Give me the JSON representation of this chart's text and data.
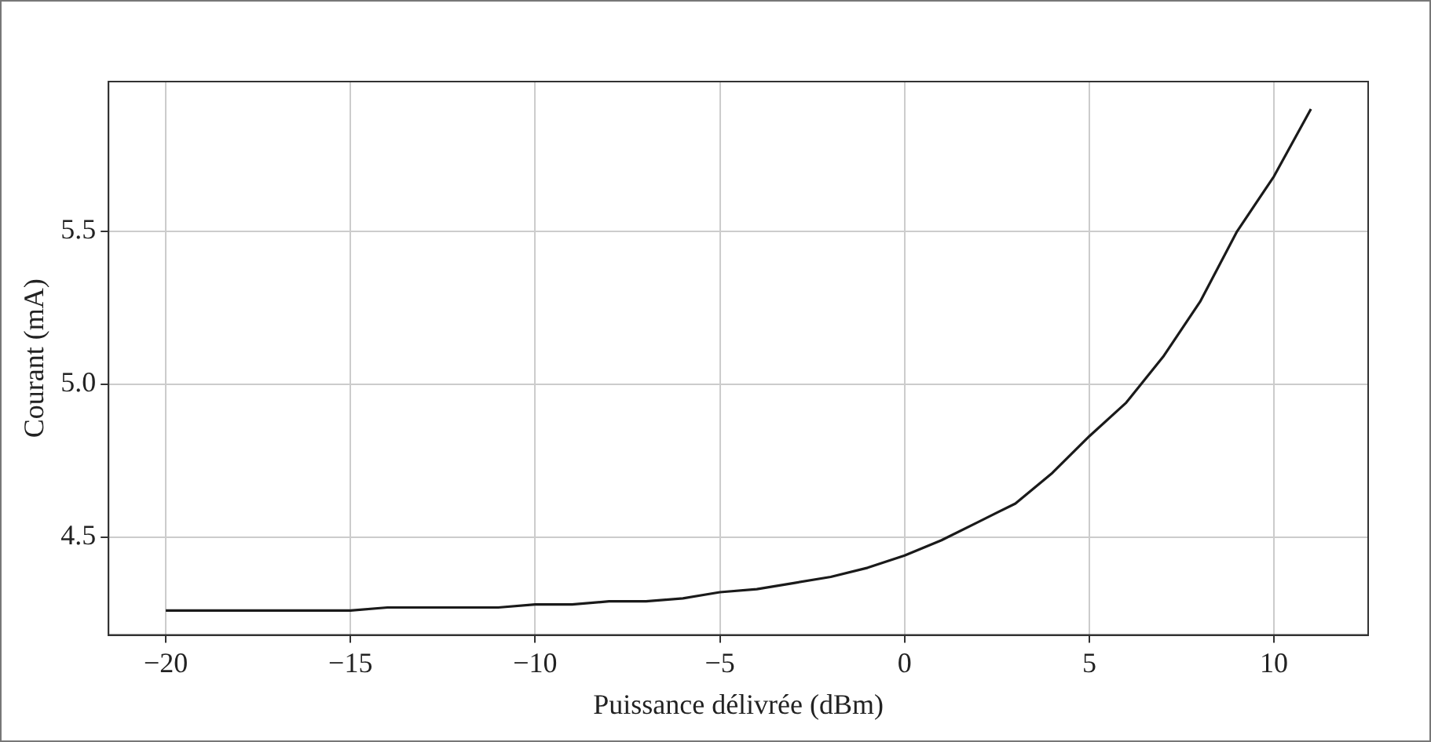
{
  "chart_data": {
    "type": "line",
    "xlabel": "Puissance délivrée (dBm)",
    "ylabel": "Courant (mA)",
    "x": [
      -20,
      -19,
      -18,
      -17,
      -16,
      -15,
      -14,
      -13,
      -12,
      -11,
      -10,
      -9,
      -8,
      -7,
      -6,
      -5,
      -4,
      -3,
      -2,
      -1,
      0,
      1,
      2,
      3,
      4,
      5,
      6,
      7,
      8,
      9,
      10,
      11
    ],
    "series": [
      {
        "color": "#1a1a1a",
        "values": [
          4.26,
          4.26,
          4.26,
          4.26,
          4.26,
          4.26,
          4.27,
          4.27,
          4.27,
          4.27,
          4.28,
          4.28,
          4.29,
          4.29,
          4.3,
          4.32,
          4.33,
          4.35,
          4.37,
          4.4,
          4.44,
          4.49,
          4.55,
          4.61,
          4.71,
          4.83,
          4.94,
          5.09,
          5.27,
          5.5,
          5.68,
          5.9
        ]
      }
    ],
    "xlim": [
      -21.55,
      12.55
    ],
    "ylim": [
      4.18,
      5.99
    ],
    "xticks": [
      {
        "value": -20,
        "label": "−20"
      },
      {
        "value": -15,
        "label": "−15"
      },
      {
        "value": -10,
        "label": "−10"
      },
      {
        "value": -5,
        "label": "−5"
      },
      0,
      5,
      10
    ],
    "yticks": [
      {
        "value": 4.5,
        "label": "4.5"
      },
      {
        "value": 5,
        "label": "5.0"
      },
      {
        "value": 5.5,
        "label": "5.5"
      }
    ],
    "grid": true,
    "legend": false,
    "marker": "none",
    "line_style": "solid"
  }
}
